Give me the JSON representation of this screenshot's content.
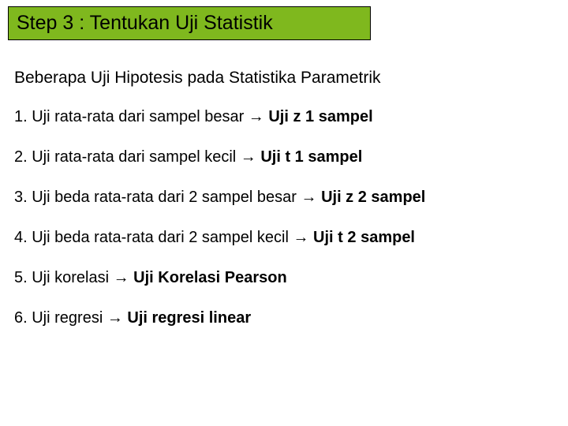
{
  "header": {
    "title": "Step 3 : Tentukan Uji Statistik",
    "background_color": "#7fb81e",
    "border_color": "#000000",
    "fontsize": 25
  },
  "subtitle": {
    "text": "Beberapa Uji Hipotesis pada Statistika Parametrik",
    "fontsize": 21
  },
  "items": [
    {
      "prefix": "1. Uji rata-rata dari sampel besar ",
      "arrow": "→",
      "bold": " Uji z 1 sampel"
    },
    {
      "prefix": "2. Uji rata-rata dari sampel kecil ",
      "arrow": "→",
      "bold": " Uji t 1 sampel"
    },
    {
      "prefix": "3. Uji beda rata-rata dari 2 sampel besar ",
      "arrow": "→",
      "bold": " Uji z 2 sampel"
    },
    {
      "prefix": "4. Uji beda rata-rata dari 2 sampel kecil ",
      "arrow": "→",
      "bold": " Uji t 2 sampel"
    },
    {
      "prefix": "5. Uji korelasi ",
      "arrow": "→",
      "bold": " Uji Korelasi Pearson"
    },
    {
      "prefix": "6. Uji regresi ",
      "arrow": "→",
      "bold": " Uji regresi linear"
    }
  ],
  "styling": {
    "body_background": "#ffffff",
    "text_color": "#000000",
    "item_fontsize": 20,
    "item_spacing": 28
  }
}
